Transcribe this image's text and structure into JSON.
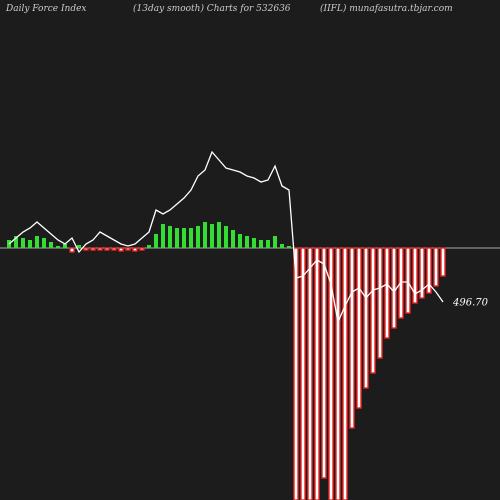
{
  "chart_data": {
    "type": "bar",
    "title": "Daily Force  Index",
    "subtitle": "(13day smooth) Charts for 532636",
    "source": "(IIFL) munafasutra.tbjar.com",
    "ylim": [
      -252,
      248
    ],
    "y2lim": [
      417.5,
      617.5
    ],
    "series": [
      {
        "type": "bar",
        "up_color": "#33dd33",
        "down_color": "#ee2222",
        "values": [
          8,
          12,
          10,
          8,
          12,
          10,
          6,
          2,
          4,
          -4,
          3,
          -2,
          -2,
          -2,
          -2,
          -2,
          -3,
          -2,
          -3,
          -2,
          3,
          14,
          24,
          22,
          20,
          20,
          20,
          22,
          26,
          24,
          26,
          22,
          18,
          14,
          12,
          10,
          8,
          8,
          12,
          4,
          2,
          -252,
          -252,
          -252,
          -252,
          -230,
          -252,
          -252,
          -252,
          -180,
          -160,
          -140,
          -125,
          -110,
          -90,
          -80,
          -70,
          -65,
          -55,
          -50,
          -45,
          -38,
          -28
        ]
      },
      {
        "type": "line",
        "color": "#ffffff",
        "axis": "y2",
        "values": [
          519.9,
          522.3,
          524.7,
          526.3,
          528.7,
          526.3,
          523.9,
          521.5,
          519.9,
          522.3,
          516.7,
          519.9,
          521.5,
          524.7,
          523.1,
          521.5,
          519.9,
          519.1,
          519.9,
          522.3,
          524.7,
          533.5,
          531.9,
          533.5,
          535.9,
          538.3,
          541.5,
          547.1,
          549.5,
          556.7,
          553.5,
          550.3,
          549.5,
          548.7,
          547.1,
          546.3,
          544.7,
          545.5,
          551.1,
          543.1,
          541.5,
          506.3,
          507.1,
          510.3,
          513.5,
          511.9,
          503.9,
          488.7,
          495.1,
          500.7,
          502.3,
          498.3,
          501.5,
          502.3,
          503.9,
          500.7,
          504.7,
          504.7,
          499.9,
          501.5,
          503.9,
          500.7,
          496.7
        ],
        "value_labels": [
          null,
          null,
          null,
          null,
          null,
          null,
          null,
          null,
          null,
          null,
          null,
          null,
          null,
          null,
          null,
          null,
          null,
          null,
          null,
          null,
          null,
          null,
          null,
          null,
          null,
          null,
          null,
          null,
          null,
          null,
          null,
          null,
          null,
          null,
          null,
          null,
          null,
          null,
          null,
          null,
          null,
          null,
          null,
          null,
          null,
          null,
          null,
          null,
          null,
          null,
          null,
          null,
          null,
          null,
          null,
          null,
          null,
          null,
          null,
          null,
          null,
          null,
          "496.70"
        ]
      }
    ]
  }
}
